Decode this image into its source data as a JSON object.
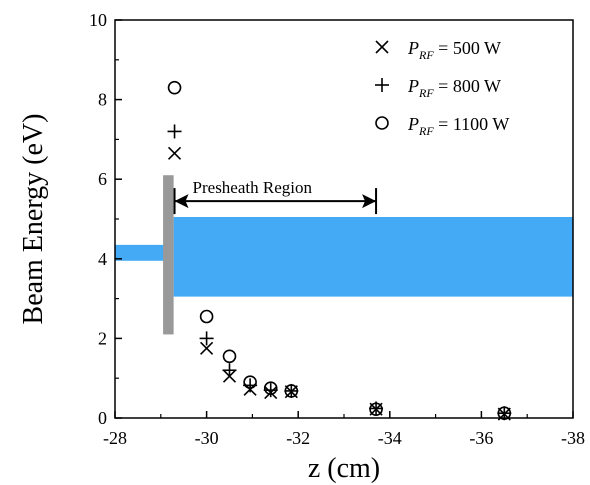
{
  "chart_data": {
    "type": "scatter",
    "xlabel": "z (cm)",
    "ylabel": "Beam Energy (eV)",
    "xlim": [
      -28,
      -38
    ],
    "ylim": [
      0,
      10
    ],
    "xticks": [
      -28,
      -30,
      -32,
      -34,
      -36,
      -38
    ],
    "yticks": [
      0,
      2,
      4,
      6,
      8,
      10
    ],
    "grid": false,
    "legend_position": "top-right",
    "series": [
      {
        "name_prefix": "P",
        "name_subscript": "RF",
        "name_suffix": " = 500 W",
        "marker": "x",
        "points": [
          {
            "x": -29.3,
            "y": 6.65
          },
          {
            "x": -30.0,
            "y": 1.75
          },
          {
            "x": -30.5,
            "y": 1.05
          },
          {
            "x": -30.95,
            "y": 0.72
          },
          {
            "x": -31.4,
            "y": 0.64
          },
          {
            "x": -31.85,
            "y": 0.66
          },
          {
            "x": -33.7,
            "y": 0.22
          },
          {
            "x": -36.5,
            "y": 0.1
          }
        ]
      },
      {
        "name_prefix": "P",
        "name_subscript": "RF",
        "name_suffix": " =  800 W",
        "marker": "plus",
        "points": [
          {
            "x": -29.3,
            "y": 7.2
          },
          {
            "x": -30.0,
            "y": 2.0
          },
          {
            "x": -30.5,
            "y": 1.2
          },
          {
            "x": -30.95,
            "y": 0.82
          },
          {
            "x": -31.4,
            "y": 0.7
          },
          {
            "x": -31.85,
            "y": 0.68
          },
          {
            "x": -33.7,
            "y": 0.24
          },
          {
            "x": -36.5,
            "y": 0.12
          }
        ]
      },
      {
        "name_prefix": "P",
        "name_subscript": "RF",
        "name_suffix": " = 1100 W",
        "marker": "circle",
        "points": [
          {
            "x": -29.3,
            "y": 8.3
          },
          {
            "x": -30.0,
            "y": 2.55
          },
          {
            "x": -30.5,
            "y": 1.55
          },
          {
            "x": -30.95,
            "y": 0.9
          },
          {
            "x": -31.4,
            "y": 0.75
          },
          {
            "x": -31.85,
            "y": 0.68
          },
          {
            "x": -33.7,
            "y": 0.22
          },
          {
            "x": -36.5,
            "y": 0.12
          }
        ]
      }
    ],
    "annotations": {
      "presheath_label": "Presheath Region",
      "presheath_arrow_x": [
        -29.3,
        -33.7
      ],
      "presheath_arrow_y": 5.45
    },
    "schematic": {
      "plate_color": "#999999",
      "beam_color": "#44aaf5",
      "plate_x": [
        -29.05,
        -29.28
      ],
      "plate_y": [
        2.1,
        6.1
      ],
      "small_beam_x": [
        -28,
        -29.1
      ],
      "small_beam_y": [
        3.95,
        4.35
      ],
      "wide_beam_x": [
        -29.28,
        -38
      ],
      "wide_beam_y": [
        3.05,
        5.05
      ]
    }
  }
}
